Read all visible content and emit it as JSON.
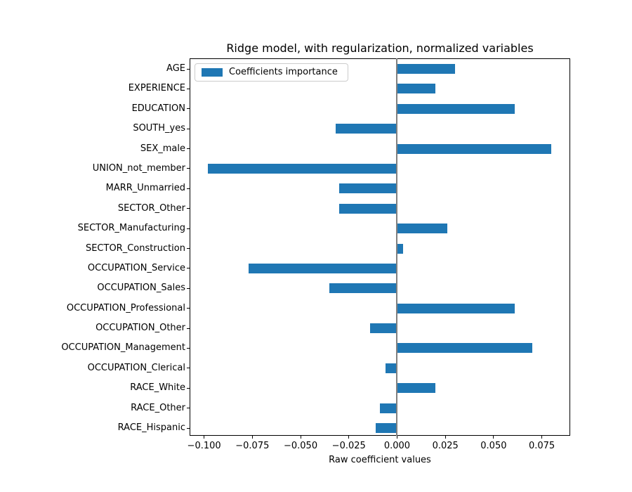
{
  "figure": {
    "background": "#ffffff"
  },
  "chart_data": {
    "type": "bar",
    "orientation": "horizontal",
    "title": "Ridge model, with regularization, normalized variables",
    "xlabel": "Raw coefficient values",
    "ylabel": "",
    "legend": {
      "label": "Coefficients importance",
      "position": "upper left",
      "swatch_color": "#1f77b4"
    },
    "categories": [
      "AGE",
      "EXPERIENCE",
      "EDUCATION",
      "SOUTH_yes",
      "SEX_male",
      "UNION_not_member",
      "MARR_Unmarried",
      "SECTOR_Other",
      "SECTOR_Manufacturing",
      "SECTOR_Construction",
      "OCCUPATION_Service",
      "OCCUPATION_Sales",
      "OCCUPATION_Professional",
      "OCCUPATION_Other",
      "OCCUPATION_Management",
      "OCCUPATION_Clerical",
      "RACE_White",
      "RACE_Other",
      "RACE_Hispanic"
    ],
    "values": [
      0.03,
      0.02,
      0.061,
      -0.032,
      0.08,
      -0.098,
      -0.03,
      -0.03,
      0.026,
      0.003,
      -0.077,
      -0.035,
      0.061,
      -0.014,
      0.07,
      -0.006,
      0.02,
      -0.009,
      -0.011
    ],
    "xlim": [
      -0.1075,
      0.0897
    ],
    "xticks": [
      -0.1,
      -0.075,
      -0.05,
      -0.025,
      0.0,
      0.025,
      0.05,
      0.075
    ],
    "xtick_labels": [
      "−0.100",
      "−0.075",
      "−0.050",
      "−0.025",
      "0.000",
      "0.025",
      "0.050",
      "0.075"
    ],
    "bar_color": "#1f77b4",
    "zero_line_color": "#808080",
    "grid": false
  }
}
